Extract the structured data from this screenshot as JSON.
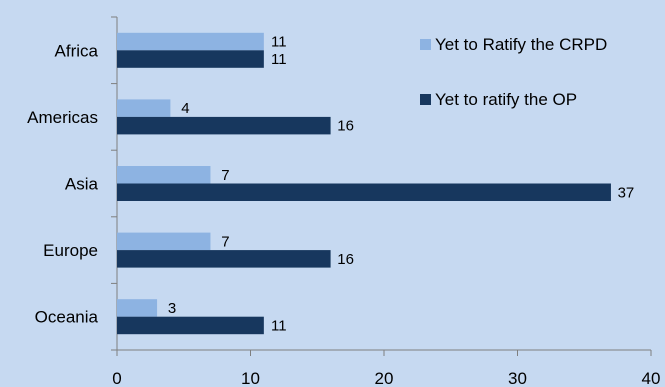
{
  "chart_data": {
    "type": "bar",
    "orientation": "horizontal",
    "categories": [
      "Africa",
      "Americas",
      "Asia",
      "Europe",
      "Oceania"
    ],
    "series": [
      {
        "name": "Yet to Ratify the CRPD",
        "values": [
          11,
          4,
          7,
          7,
          3
        ],
        "color": "#8db3e2"
      },
      {
        "name": "Yet to ratify the OP",
        "values": [
          11,
          16,
          37,
          16,
          11
        ],
        "color": "#17375e"
      }
    ],
    "xlim": [
      0,
      40
    ],
    "xticks": [
      0,
      10,
      20,
      30,
      40
    ],
    "grid": false,
    "legend_position": "top-right",
    "background": "#c6d9f1"
  }
}
